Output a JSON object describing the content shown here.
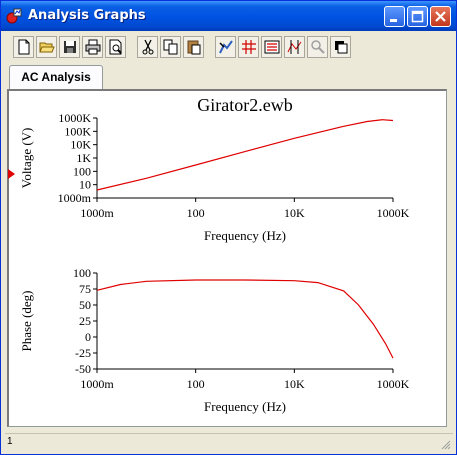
{
  "window": {
    "title": "Analysis Graphs"
  },
  "toolbar": {
    "buttons": [
      "new",
      "open",
      "save",
      "print",
      "print-preview",
      "cut",
      "copy",
      "paste",
      "properties",
      "toggle-grid",
      "toggle-legend",
      "cursors",
      "zoom",
      "restore"
    ]
  },
  "tabs": [
    {
      "label": "AC Analysis"
    }
  ],
  "status": {
    "text": "1"
  },
  "colors": {
    "trace": "#e00000",
    "accent": "#0054e3"
  },
  "chart_data": [
    {
      "type": "line",
      "title": "Girator2.ewb",
      "xlabel": "Frequency (Hz)",
      "ylabel": "Voltage (V)",
      "xscale": "log",
      "yscale": "log",
      "xlim": [
        1,
        1000000
      ],
      "ylim": [
        1,
        1000000
      ],
      "xticks": [
        "1000m",
        "100",
        "10K",
        "1000K"
      ],
      "yticks": [
        "1000m",
        "10",
        "100",
        "1K",
        "10K",
        "100K",
        "1000K"
      ],
      "series": [
        {
          "values_xy": [
            [
              1,
              4
            ],
            [
              10,
              30
            ],
            [
              100,
              300
            ],
            [
              1000,
              3000
            ],
            [
              10000,
              30000
            ],
            [
              100000,
              240000
            ],
            [
              300000,
              550000
            ],
            [
              600000,
              750000
            ],
            [
              1000000,
              650000
            ]
          ]
        }
      ]
    },
    {
      "type": "line",
      "title": "",
      "xlabel": "Frequency (Hz)",
      "ylabel": "Phase (deg)",
      "xscale": "log",
      "xlim": [
        1,
        1000000
      ],
      "ylim": [
        -50,
        100
      ],
      "xticks": [
        "1000m",
        "100",
        "10K",
        "1000K"
      ],
      "yticks": [
        "100",
        "75",
        "50",
        "25",
        "0",
        "-25",
        "-50"
      ],
      "series": [
        {
          "values_xy": [
            [
              1,
              73
            ],
            [
              3,
              82
            ],
            [
              10,
              87
            ],
            [
              100,
              89
            ],
            [
              1000,
              89
            ],
            [
              10000,
              88
            ],
            [
              30000,
              85
            ],
            [
              100000,
              72
            ],
            [
              200000,
              50
            ],
            [
              400000,
              20
            ],
            [
              700000,
              -10
            ],
            [
              1000000,
              -33
            ]
          ]
        }
      ]
    }
  ]
}
